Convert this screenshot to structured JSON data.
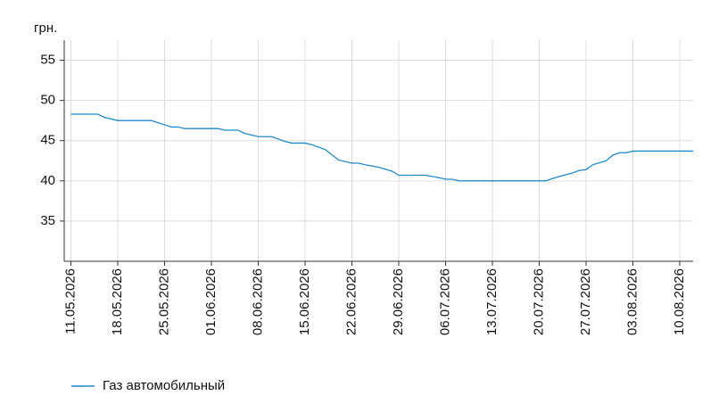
{
  "chart_data": {
    "type": "line",
    "y_label": "грн.",
    "x": [
      "11.05.2026",
      "15.05.2026",
      "16.05.2026",
      "18.05.2026",
      "23.05.2026",
      "26.05.2026",
      "27.05.2026",
      "28.05.2026",
      "02.06.2026",
      "03.06.2026",
      "05.06.2026",
      "06.06.2026",
      "08.06.2026",
      "10.06.2026",
      "12.06.2026",
      "13.06.2026",
      "15.06.2026",
      "16.06.2026",
      "18.06.2026",
      "20.06.2026",
      "22.06.2026",
      "23.06.2026",
      "24.06.2026",
      "26.06.2026",
      "28.06.2026",
      "29.06.2026",
      "03.07.2026",
      "05.07.2026",
      "06.07.2026",
      "07.07.2026",
      "08.07.2026",
      "21.07.2026",
      "22.07.2026",
      "25.07.2026",
      "26.07.2026",
      "27.07.2026",
      "28.07.2026",
      "30.07.2026",
      "31.07.2026",
      "01.08.2026",
      "02.08.2026",
      "03.08.2026",
      "12.08.2026"
    ],
    "series": [
      {
        "name": "Газ автомобильный",
        "color": "#1f8ac9",
        "values": [
          48.3,
          48.3,
          47.9,
          47.5,
          47.5,
          46.7,
          46.7,
          46.5,
          46.5,
          46.3,
          46.3,
          45.9,
          45.5,
          45.5,
          44.9,
          44.7,
          44.7,
          44.5,
          43.9,
          42.6,
          42.2,
          42.2,
          42.0,
          41.7,
          41.2,
          40.7,
          40.7,
          40.4,
          40.2,
          40.2,
          40.0,
          40.0,
          40.3,
          41.0,
          41.3,
          41.4,
          42.0,
          42.5,
          43.2,
          43.5,
          43.5,
          43.7,
          43.7
        ]
      }
    ],
    "xlim": [
      "10.05.2026",
      "12.08.2026"
    ],
    "xticks": [
      "11.05.2026",
      "18.05.2026",
      "25.05.2026",
      "01.06.2026",
      "08.06.2026",
      "15.06.2026",
      "22.06.2026",
      "29.06.2026",
      "06.07.2026",
      "13.07.2026",
      "20.07.2026",
      "27.07.2026",
      "03.08.2026",
      "10.08.2026"
    ],
    "ylim": [
      30,
      57.5
    ],
    "yticks": [
      35,
      40,
      45,
      50,
      55
    ],
    "grid": true,
    "legend": "bottom-left"
  }
}
